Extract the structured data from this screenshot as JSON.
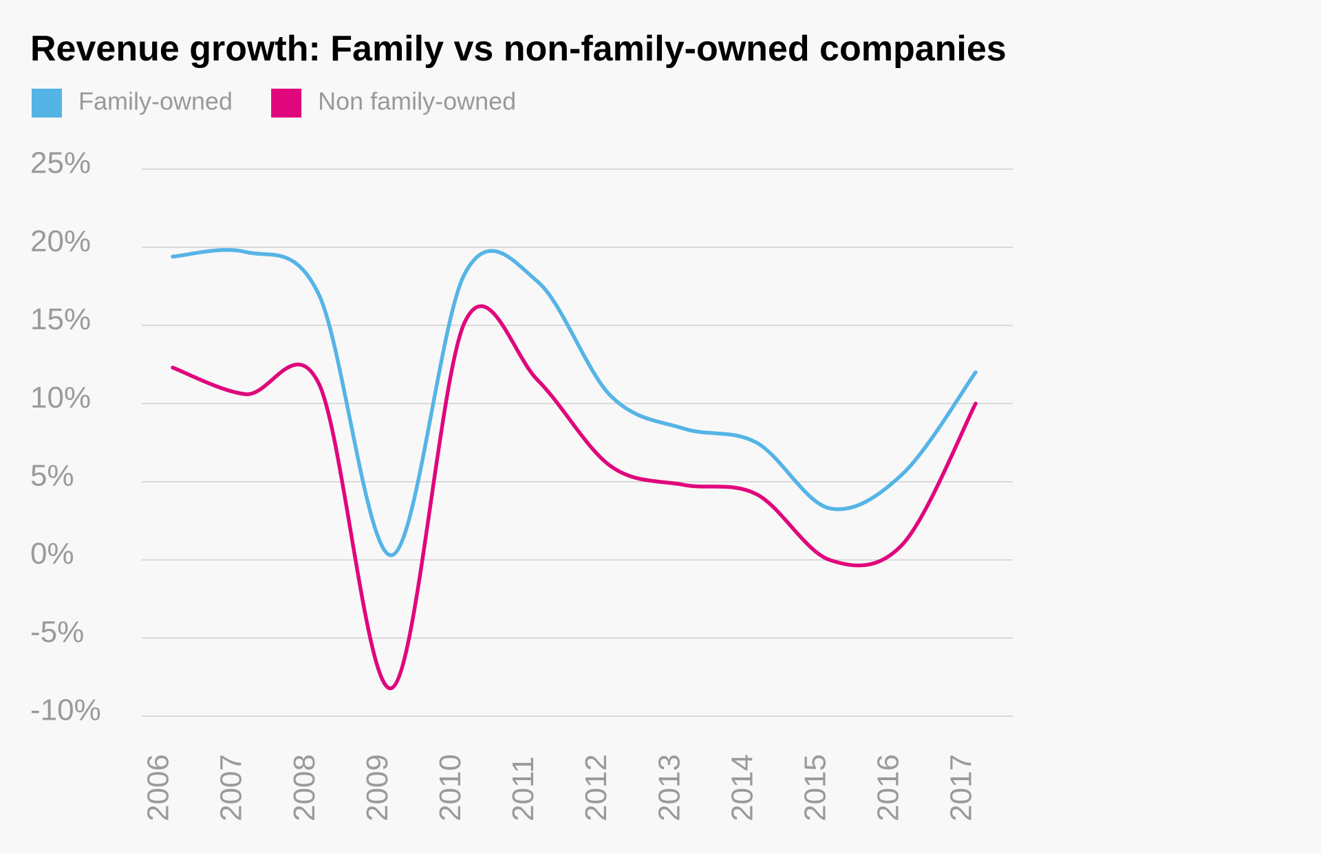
{
  "chart_data": {
    "type": "line",
    "title": "Revenue growth: Family vs non-family-owned companies",
    "categories": [
      "2006",
      "2007",
      "2008",
      "2009",
      "2010",
      "2011",
      "2012",
      "2013",
      "2014",
      "2015",
      "2016",
      "2017"
    ],
    "series": [
      {
        "name": "Family-owned",
        "color": "#55b4e6",
        "values": [
          19.4,
          19.7,
          17,
          0.3,
          18.3,
          17.8,
          10.5,
          8.4,
          7.5,
          3.3,
          5.5,
          12
        ]
      },
      {
        "name": "Non family-owned",
        "color": "#e0077d",
        "values": [
          12.3,
          10.6,
          11.3,
          -8.2,
          15.2,
          11.5,
          6,
          4.8,
          4.2,
          0,
          1,
          10
        ]
      }
    ],
    "ylim": [
      -10,
      25
    ],
    "yticks": [
      {
        "value": 25,
        "label": "25%"
      },
      {
        "value": 20,
        "label": "20%"
      },
      {
        "value": 15,
        "label": "15%"
      },
      {
        "value": 10,
        "label": "10%"
      },
      {
        "value": 5,
        "label": "5%"
      },
      {
        "value": 0,
        "label": "0%"
      },
      {
        "value": -5,
        "label": "-5%"
      },
      {
        "value": -10,
        "label": "-10%"
      }
    ],
    "grid": true,
    "legend": "top"
  }
}
